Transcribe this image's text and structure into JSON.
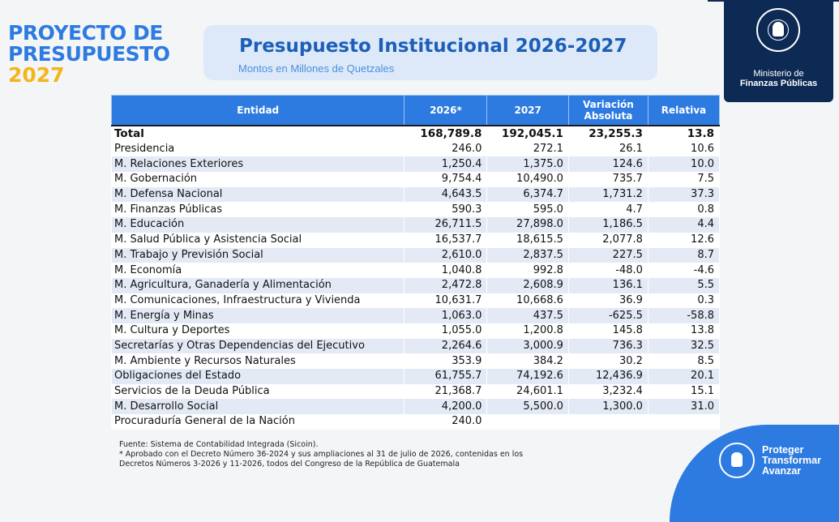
{
  "brand": {
    "line1": "PROYECTO DE",
    "line2": "PRESUPUESTO",
    "line3": "2027"
  },
  "header": {
    "title": "Presupuesto Institucional 2026-2027",
    "subtitle": "Montos en Millones de Quetzales"
  },
  "ministry": {
    "line1": "Ministerio de",
    "line2": "Finanzas Públicas",
    "seal_icon": "guatemala-seal-icon"
  },
  "table": {
    "headers": [
      "Entidad",
      "2026*",
      "2027",
      "Variación Absoluta",
      "Relativa"
    ],
    "total": {
      "entidad": "Total",
      "y2026": "168,789.8",
      "y2027": "192,045.1",
      "abs": "23,255.3",
      "rel": "13.8"
    },
    "rows": [
      {
        "entidad": "Presidencia",
        "y2026": "246.0",
        "y2027": "272.1",
        "abs": "26.1",
        "rel": "10.6"
      },
      {
        "entidad": "M. Relaciones Exteriores",
        "y2026": "1,250.4",
        "y2027": "1,375.0",
        "abs": "124.6",
        "rel": "10.0"
      },
      {
        "entidad": "M. Gobernación",
        "y2026": "9,754.4",
        "y2027": "10,490.0",
        "abs": "735.7",
        "rel": "7.5"
      },
      {
        "entidad": "M. Defensa Nacional",
        "y2026": "4,643.5",
        "y2027": "6,374.7",
        "abs": "1,731.2",
        "rel": "37.3"
      },
      {
        "entidad": "M. Finanzas Públicas",
        "y2026": "590.3",
        "y2027": "595.0",
        "abs": "4.7",
        "rel": "0.8"
      },
      {
        "entidad": "M. Educación",
        "y2026": "26,711.5",
        "y2027": "27,898.0",
        "abs": "1,186.5",
        "rel": "4.4"
      },
      {
        "entidad": "M. Salud Pública y Asistencia Social",
        "y2026": "16,537.7",
        "y2027": "18,615.5",
        "abs": "2,077.8",
        "rel": "12.6"
      },
      {
        "entidad": "M. Trabajo y Previsión Social",
        "y2026": "2,610.0",
        "y2027": "2,837.5",
        "abs": "227.5",
        "rel": "8.7"
      },
      {
        "entidad": "M. Economía",
        "y2026": "1,040.8",
        "y2027": "992.8",
        "abs": "-48.0",
        "rel": "-4.6"
      },
      {
        "entidad": "M. Agricultura, Ganadería y Alimentación",
        "y2026": "2,472.8",
        "y2027": "2,608.9",
        "abs": "136.1",
        "rel": "5.5"
      },
      {
        "entidad": "M. Comunicaciones, Infraestructura y Vivienda",
        "y2026": "10,631.7",
        "y2027": "10,668.6",
        "abs": "36.9",
        "rel": "0.3"
      },
      {
        "entidad": "M. Energía y Minas",
        "y2026": "1,063.0",
        "y2027": "437.5",
        "abs": "-625.5",
        "rel": "-58.8"
      },
      {
        "entidad": "M. Cultura y Deportes",
        "y2026": "1,055.0",
        "y2027": "1,200.8",
        "abs": "145.8",
        "rel": "13.8"
      },
      {
        "entidad": "Secretarías y Otras Dependencias del Ejecutivo",
        "y2026": "2,264.6",
        "y2027": "3,000.9",
        "abs": "736.3",
        "rel": "32.5"
      },
      {
        "entidad": "M. Ambiente y Recursos Naturales",
        "y2026": "353.9",
        "y2027": "384.2",
        "abs": "30.2",
        "rel": "8.5"
      },
      {
        "entidad": "Obligaciones del Estado",
        "y2026": "61,755.7",
        "y2027": "74,192.6",
        "abs": "12,436.9",
        "rel": "20.1"
      },
      {
        "entidad": "Servicios de la Deuda Pública",
        "y2026": "21,368.7",
        "y2027": "24,601.1",
        "abs": "3,232.4",
        "rel": "15.1"
      },
      {
        "entidad": "M. Desarrollo Social",
        "y2026": "4,200.0",
        "y2027": "5,500.0",
        "abs": "1,300.0",
        "rel": "31.0"
      },
      {
        "entidad": "Procuraduría General de la Nación",
        "y2026": "240.0",
        "y2027": "",
        "abs": "",
        "rel": ""
      }
    ]
  },
  "notes": {
    "source": "Fuente: Sistema de Contabilidad Integrada (Sicoin).",
    "note1": "* Aprobado con el Decreto Número 36-2024 y sus ampliaciones al 31 de julio de 2026, contenidas en los",
    "note2": "Decretos Números 3-2026 y 11-2026, todos del Congreso de la República de Guatemala"
  },
  "slogan": {
    "line1": "Proteger",
    "line2": "Transformar",
    "line3": "Avanzar"
  },
  "colors": {
    "accent": "#2d7be0",
    "navy": "#0d2a55",
    "gold": "#f2b51b",
    "row_alt": "#e3eaf6"
  }
}
